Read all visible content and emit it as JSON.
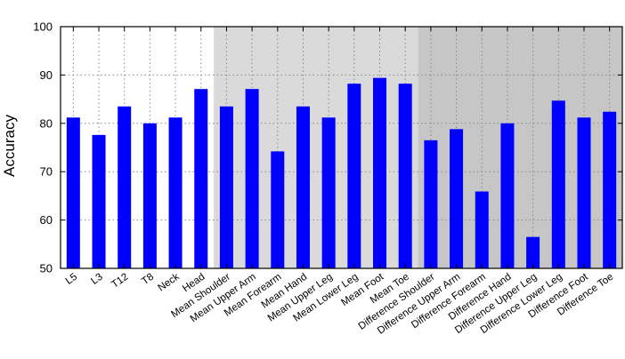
{
  "chart_data": {
    "type": "bar",
    "ylabel": "Accuracy",
    "xlabel": "",
    "title": "",
    "ylim": [
      50,
      100
    ],
    "yticks": [
      50,
      60,
      70,
      80,
      90,
      100
    ],
    "grid": true,
    "categories": [
      "L5",
      "L3",
      "T12",
      "T8",
      "Neck",
      "Head",
      "Mean Shoulder",
      "Mean Upper Arm",
      "Mean Forearm",
      "Mean Hand",
      "Mean Upper Leg",
      "Mean Lower Leg",
      "Mean Foot",
      "Mean Toe",
      "Difference Shoulder",
      "Difference Upper Arm",
      "Difference Forearm",
      "Difference Hand",
      "Difference Upper Leg",
      "Difference Lower Leg",
      "Difference Foot",
      "Difference Toe"
    ],
    "values": [
      81.2,
      77.6,
      83.5,
      80.0,
      81.2,
      87.1,
      83.5,
      87.1,
      74.2,
      83.5,
      81.2,
      88.2,
      89.4,
      88.2,
      76.5,
      78.8,
      65.9,
      80.0,
      56.5,
      84.7,
      81.2,
      82.4
    ],
    "bar_color": "#0000ff",
    "regions": [
      {
        "start": 0,
        "end": 5,
        "color": "#ffffff"
      },
      {
        "start": 6,
        "end": 13,
        "color": "#dadada"
      },
      {
        "start": 14,
        "end": 21,
        "color": "#c6c6c6"
      }
    ]
  }
}
